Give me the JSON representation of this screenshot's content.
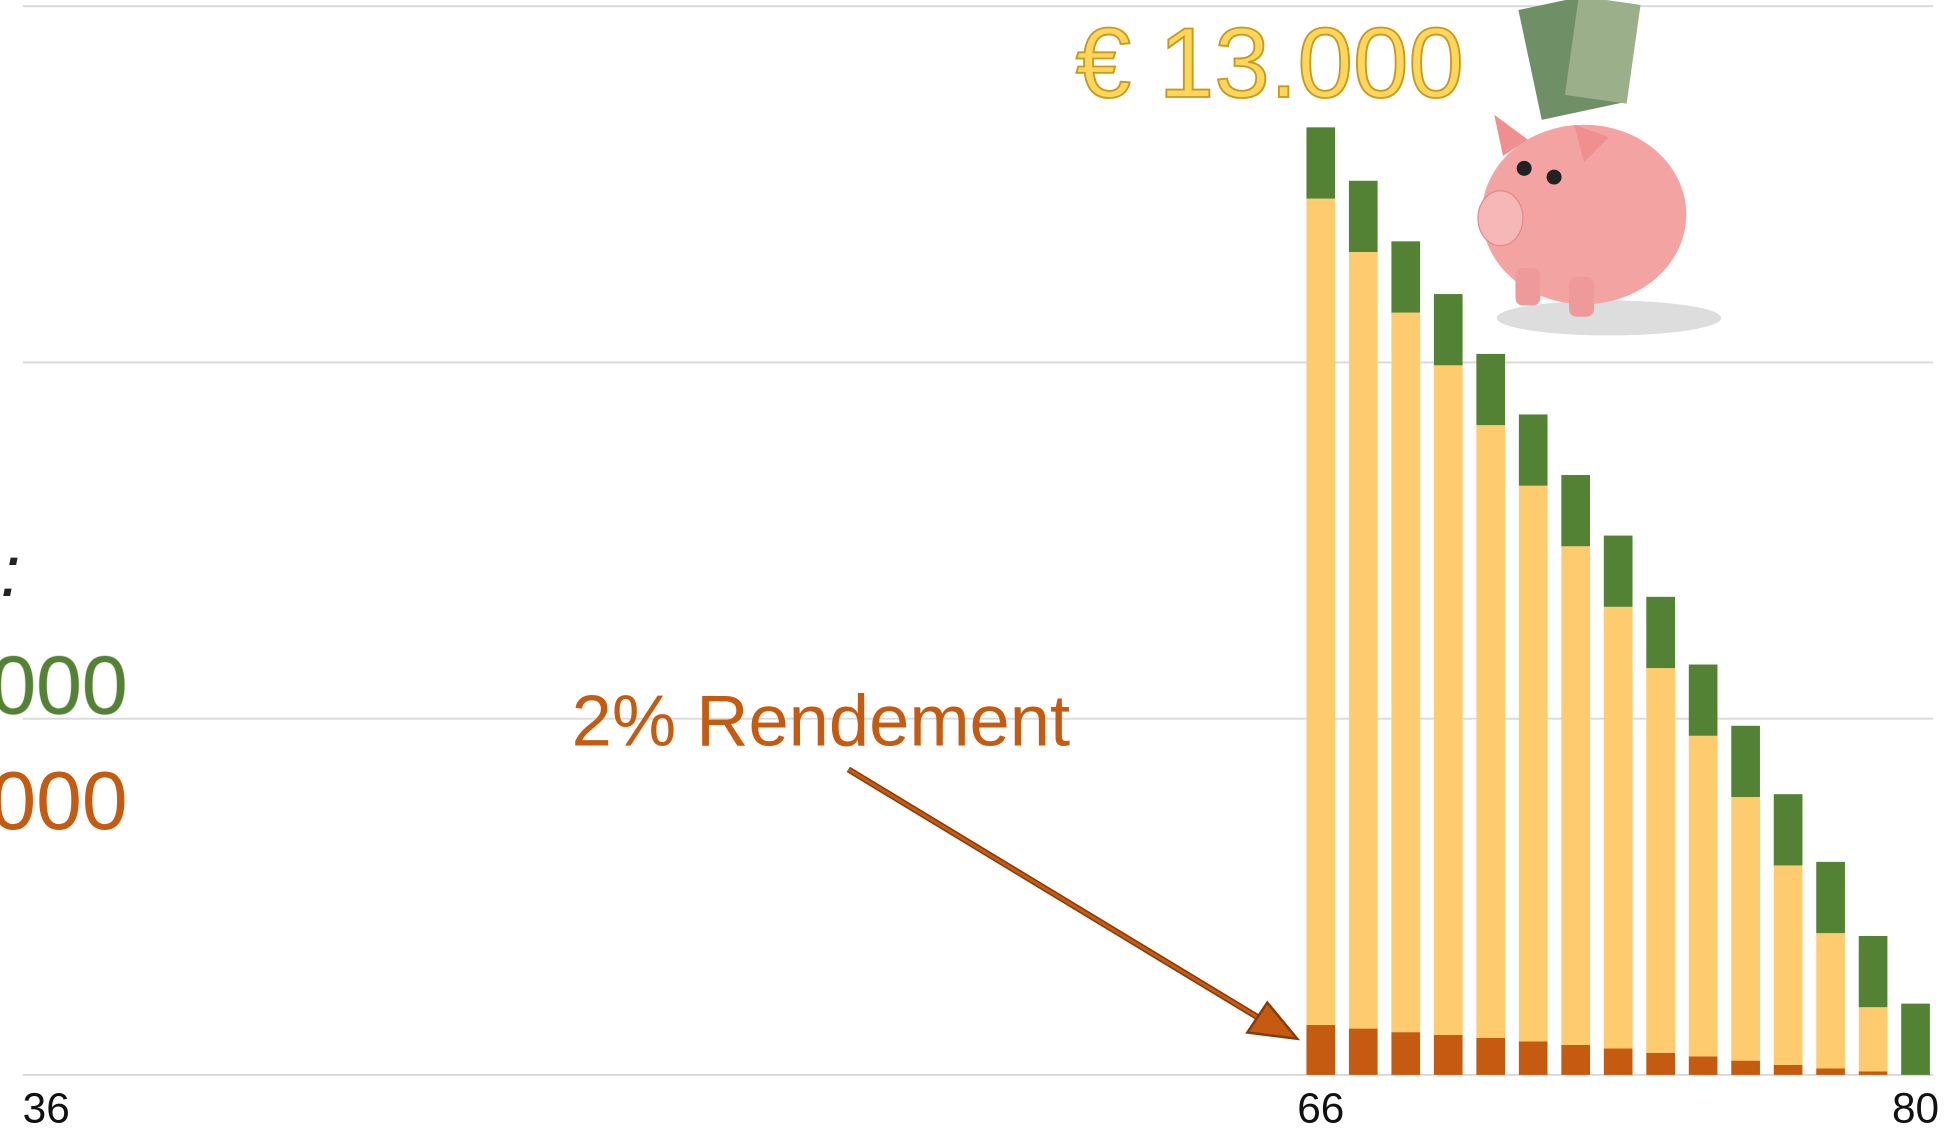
{
  "chart_data": {
    "type": "stacked_bar",
    "categories": [
      "36",
      null,
      null,
      null,
      null,
      null,
      null,
      null,
      null,
      null,
      null,
      null,
      null,
      null,
      null,
      null,
      null,
      null,
      null,
      null,
      null,
      null,
      null,
      null,
      null,
      null,
      null,
      null,
      null,
      null,
      "66",
      null,
      null,
      null,
      null,
      null,
      null,
      null,
      null,
      null,
      null,
      null,
      null,
      null,
      "80"
    ],
    "series": [
      {
        "color": "#c55a11",
        "values": [
          null,
          null,
          null,
          null,
          null,
          null,
          null,
          null,
          null,
          null,
          null,
          null,
          null,
          null,
          null,
          null,
          null,
          null,
          null,
          null,
          null,
          null,
          null,
          null,
          null,
          null,
          null,
          null,
          null,
          null,
          700,
          650,
          600,
          560,
          520,
          470,
          420,
          370,
          310,
          260,
          200,
          140,
          90,
          50,
          0
        ]
      },
      {
        "color": "#fecb6e",
        "values": [
          null,
          null,
          null,
          null,
          null,
          null,
          null,
          null,
          null,
          null,
          null,
          null,
          null,
          null,
          null,
          null,
          null,
          null,
          null,
          null,
          null,
          null,
          null,
          null,
          null,
          null,
          null,
          null,
          null,
          null,
          11600,
          10900,
          10100,
          9400,
          8600,
          7800,
          7000,
          6200,
          5400,
          4500,
          3700,
          2800,
          1900,
          900,
          0
        ]
      },
      {
        "color": "#548235",
        "values": [
          null,
          null,
          null,
          null,
          null,
          null,
          null,
          null,
          null,
          null,
          null,
          null,
          null,
          null,
          null,
          null,
          null,
          null,
          null,
          null,
          null,
          null,
          null,
          null,
          null,
          null,
          null,
          null,
          null,
          null,
          1000,
          1000,
          1000,
          1000,
          1000,
          1000,
          1000,
          1000,
          1000,
          1000,
          1000,
          1000,
          1000,
          1000,
          1000
        ]
      }
    ],
    "ylim": [
      0,
      15000
    ],
    "yticks": [
      0,
      5000,
      10000,
      15000
    ],
    "grid": true,
    "annotations": [
      "€ 13.000",
      "2% Rendement",
      ":",
      "000",
      "000"
    ]
  }
}
